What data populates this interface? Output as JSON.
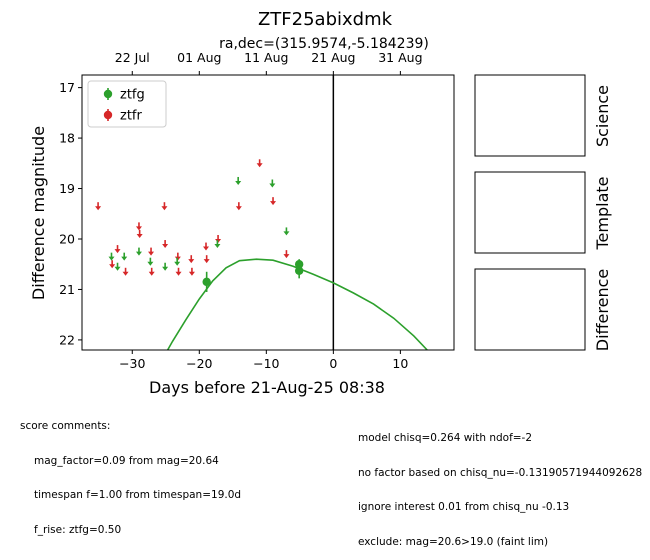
{
  "chart_data": {
    "type": "scatter",
    "title": "ZTF25abixdmk",
    "subtitle": "ra,dec=(315.9574,-5.184239)",
    "xlabel": "Days before 21-Aug-25 08:38",
    "ylabel": "Difference magnitude",
    "xlim": [
      -37.5,
      18
    ],
    "ylim": [
      22.2,
      16.75
    ],
    "y_inverted": true,
    "xticks": [
      -30,
      -20,
      -10,
      0,
      10
    ],
    "xtick_labels": [
      "−30",
      "−20",
      "−10",
      "0",
      "10"
    ],
    "yticks": [
      17,
      18,
      19,
      20,
      21,
      22
    ],
    "yticks_labels": [
      "17",
      "18",
      "19",
      "20",
      "21",
      "22"
    ],
    "top_axis_ticks": [
      -30,
      -20,
      -10,
      0,
      10
    ],
    "top_axis_labels": [
      "22 Jul",
      "01 Aug",
      "11 Aug",
      "21 Aug",
      "31 Aug"
    ],
    "vline_x": 0,
    "legend": {
      "position": "top-left",
      "entries": [
        {
          "name": "ztfg",
          "color": "#2ca02c"
        },
        {
          "name": "ztfr",
          "color": "#d62728"
        }
      ]
    },
    "series": [
      {
        "name": "ztfg",
        "color": "#2ca02c",
        "detections": [
          {
            "x": -18.9,
            "y": 20.85,
            "err": 0.2
          },
          {
            "x": -5.1,
            "y": 20.5,
            "err": 0.1
          },
          {
            "x": -5.1,
            "y": 20.63,
            "err": 0.15
          }
        ],
        "upper_limits": [
          {
            "x": -33.1,
            "y": 20.35
          },
          {
            "x": -32.2,
            "y": 20.55
          },
          {
            "x": -31.2,
            "y": 20.35
          },
          {
            "x": -29.0,
            "y": 20.25
          },
          {
            "x": -27.3,
            "y": 20.45
          },
          {
            "x": -25.1,
            "y": 20.55
          },
          {
            "x": -23.3,
            "y": 20.45
          },
          {
            "x": -17.3,
            "y": 20.1
          },
          {
            "x": -14.2,
            "y": 18.85
          },
          {
            "x": -9.1,
            "y": 18.9
          },
          {
            "x": -7.0,
            "y": 19.85
          }
        ],
        "model_curve": [
          {
            "x": -26.0,
            "y": 22.5
          },
          {
            "x": -24.0,
            "y": 22.03
          },
          {
            "x": -22.0,
            "y": 21.6
          },
          {
            "x": -20.0,
            "y": 21.19
          },
          {
            "x": -18.0,
            "y": 20.83
          },
          {
            "x": -16.0,
            "y": 20.57
          },
          {
            "x": -14.0,
            "y": 20.43
          },
          {
            "x": -11.5,
            "y": 20.4
          },
          {
            "x": -9.0,
            "y": 20.42
          },
          {
            "x": -6.0,
            "y": 20.54
          },
          {
            "x": -3.0,
            "y": 20.7
          },
          {
            "x": 0.0,
            "y": 20.87
          },
          {
            "x": 3.0,
            "y": 21.07
          },
          {
            "x": 6.0,
            "y": 21.29
          },
          {
            "x": 9.0,
            "y": 21.57
          },
          {
            "x": 12.0,
            "y": 21.92
          },
          {
            "x": 14.0,
            "y": 22.2
          }
        ]
      },
      {
        "name": "ztfr",
        "color": "#d62728",
        "upper_limits": [
          {
            "x": -35.1,
            "y": 19.35
          },
          {
            "x": -33.0,
            "y": 20.5
          },
          {
            "x": -32.2,
            "y": 20.2
          },
          {
            "x": -31.0,
            "y": 20.65
          },
          {
            "x": -29.0,
            "y": 19.75
          },
          {
            "x": -28.9,
            "y": 19.9
          },
          {
            "x": -27.2,
            "y": 20.25
          },
          {
            "x": -27.1,
            "y": 20.65
          },
          {
            "x": -25.2,
            "y": 19.35
          },
          {
            "x": -25.1,
            "y": 20.1
          },
          {
            "x": -23.2,
            "y": 20.35
          },
          {
            "x": -23.1,
            "y": 20.65
          },
          {
            "x": -21.2,
            "y": 20.4
          },
          {
            "x": -21.1,
            "y": 20.65
          },
          {
            "x": -19.0,
            "y": 20.15
          },
          {
            "x": -18.9,
            "y": 20.4
          },
          {
            "x": -17.2,
            "y": 20.0
          },
          {
            "x": -14.1,
            "y": 19.35
          },
          {
            "x": -11.0,
            "y": 18.5
          },
          {
            "x": -9.0,
            "y": 19.25
          },
          {
            "x": -7.0,
            "y": 20.3
          }
        ]
      }
    ],
    "side_panels": [
      "Science",
      "Template",
      "Difference"
    ]
  },
  "score_comments": {
    "header": "score comments:",
    "lines": [
      "mag_factor=0.09 from mag=20.64",
      "timespan f=1.00 from timespan=19.0d",
      "f_rise: ztfg=0.50"
    ]
  },
  "model_comments": {
    "lines": [
      "model chisq=0.264 with ndof=-2",
      "no factor based on chisq_nu=-0.13190571944092628",
      "ignore interest 0.01 from chisq_nu -0.13",
      "exclude: mag=20.6>19.0 (faint lim)"
    ]
  }
}
